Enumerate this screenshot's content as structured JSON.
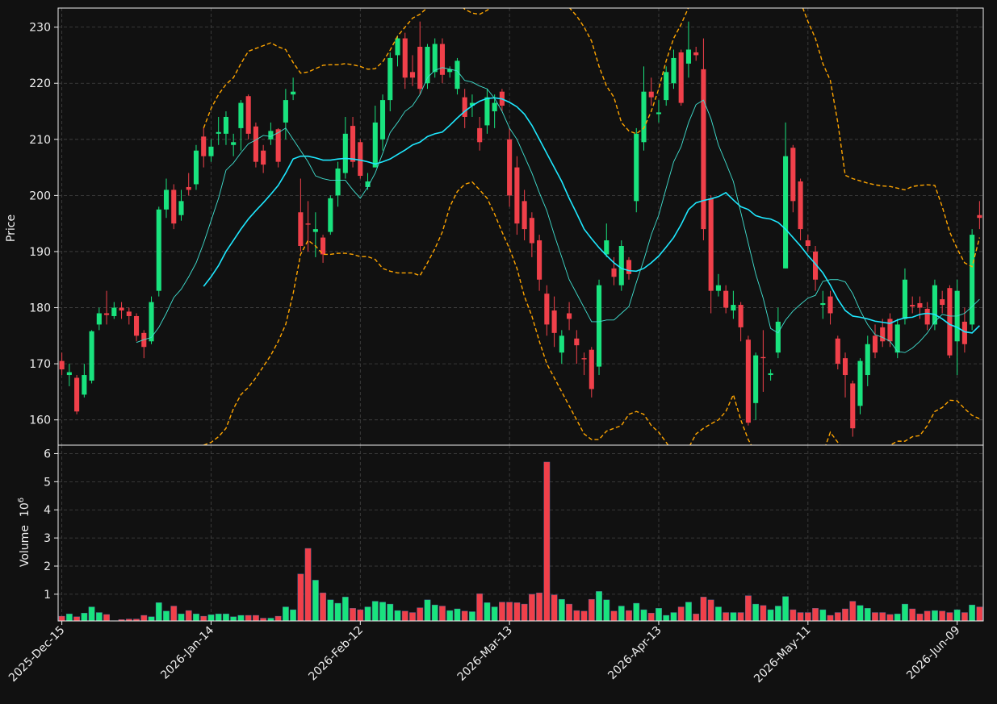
{
  "chart_data": {
    "type": "candlestick",
    "ylabel": "Price",
    "grid": true,
    "up_color": "#19e37e",
    "down_color": "#f0404a",
    "xlim": [
      -0.5,
      123.5
    ],
    "xticks": [
      {
        "value": 0,
        "label": "2025-Dec-15"
      },
      {
        "value": 20,
        "label": "2026-Jan-14"
      },
      {
        "value": 40,
        "label": "2026-Feb-12"
      },
      {
        "value": 60,
        "label": "2026-Mar-13"
      },
      {
        "value": 80,
        "label": "2026-Apr-13"
      },
      {
        "value": 100,
        "label": "2026-May-11"
      },
      {
        "value": 120,
        "label": "2026-Jun-09"
      }
    ],
    "ylim": [
      155.5,
      233.4
    ],
    "yticks": [
      160,
      170,
      180,
      190,
      200,
      210,
      220,
      230
    ],
    "open": [
      170.5,
      168,
      167.5,
      164.5,
      167,
      177,
      179,
      178.5,
      180,
      179.3,
      178.5,
      175.5,
      174,
      183,
      197.5,
      201,
      196.5,
      201.5,
      202,
      210.5,
      207,
      211,
      211,
      209,
      212,
      217.7,
      212.3,
      208,
      210,
      211.8,
      213,
      218,
      197,
      195,
      193.5,
      192.5,
      193.5,
      200,
      204,
      212.4,
      209.5,
      201.5,
      205,
      210,
      217,
      225,
      228,
      222,
      226.5,
      220,
      222,
      227,
      222,
      219,
      217.5,
      216,
      212,
      212.5,
      215,
      218.5,
      210,
      205,
      199,
      196,
      192,
      182.5,
      179.5,
      172,
      179,
      174.5,
      171,
      172.5,
      169.5,
      189.5,
      187,
      184,
      188.5,
      199,
      209.5,
      218.5,
      214.5,
      217,
      220,
      225.5,
      223.5,
      225.5,
      222.5,
      199.5,
      183,
      183,
      179.5,
      180.5,
      174.3,
      163,
      171.2,
      168,
      172,
      187,
      208.5,
      202.5,
      192,
      190,
      180.5,
      182,
      174.5,
      171,
      166.5,
      162.5,
      168,
      175,
      176.5,
      178,
      172,
      178,
      180.5,
      180.8,
      179.8,
      177,
      181.5,
      183.5,
      174,
      177.5,
      177,
      196.5
    ],
    "high": [
      172,
      170,
      168,
      170,
      176,
      180,
      183,
      181,
      181,
      180,
      179,
      176,
      182,
      198,
      203,
      202,
      201,
      204,
      209,
      212,
      210,
      214,
      215,
      211,
      217,
      218,
      213,
      209,
      213,
      212,
      219,
      221,
      203,
      199,
      197,
      193,
      200,
      206,
      214,
      214,
      210,
      204,
      216,
      218,
      225.5,
      228.5,
      229,
      225,
      231,
      227,
      228,
      228,
      223,
      224.5,
      219,
      218,
      214,
      219,
      218,
      219,
      212,
      207,
      201,
      197,
      193,
      184,
      182,
      176,
      181,
      176,
      172,
      173,
      185,
      195,
      189,
      192,
      189,
      212,
      223,
      221,
      217,
      223,
      226,
      226,
      231,
      226.5,
      228,
      200,
      186,
      184,
      183,
      181,
      175,
      172,
      176,
      169,
      180,
      213,
      209,
      203,
      193,
      191,
      183,
      183,
      175,
      172,
      167,
      171,
      175,
      177,
      178,
      179,
      178,
      187,
      182,
      182,
      181,
      185,
      183,
      184,
      185,
      180,
      194,
      199
    ],
    "low": [
      168,
      166,
      161,
      164,
      166.5,
      176,
      177,
      178,
      178,
      177,
      174,
      171,
      173.5,
      182,
      196,
      194,
      195.5,
      200,
      201,
      205,
      206,
      209,
      209,
      207,
      208,
      210,
      205,
      204,
      209,
      205,
      210,
      217,
      190,
      190,
      189,
      188,
      193,
      198,
      203,
      205,
      203,
      201,
      205,
      208,
      215,
      223,
      219,
      219.5,
      218,
      219,
      221,
      220,
      221,
      218,
      212,
      214,
      208,
      211,
      212,
      215,
      198,
      193,
      192,
      189,
      183,
      175,
      173,
      170,
      176,
      170,
      168,
      164,
      168,
      189,
      184,
      183,
      185,
      197,
      208,
      216,
      213,
      216,
      219,
      216,
      221,
      224,
      192,
      179,
      182,
      179,
      178,
      174,
      159,
      160,
      165,
      167,
      171,
      187,
      197,
      192,
      190,
      183,
      178,
      177,
      169,
      164,
      157,
      161,
      166,
      171,
      173,
      173,
      171,
      177,
      179,
      178,
      176,
      176,
      179,
      171,
      168,
      172,
      176,
      194
    ],
    "close": [
      169,
      168.5,
      161.5,
      168,
      175.8,
      179,
      178.7,
      180,
      179.5,
      178.5,
      175,
      173,
      181,
      197.5,
      201,
      195,
      199,
      201,
      208,
      207,
      208.7,
      211.3,
      214,
      209.5,
      216.5,
      211,
      206,
      205.5,
      211.5,
      206,
      217,
      218.5,
      191,
      194.8,
      194,
      189.5,
      199.5,
      204.8,
      211,
      206,
      203.5,
      202.5,
      213,
      217,
      224.5,
      228,
      221,
      221,
      219,
      226.5,
      227,
      221.5,
      222.5,
      224,
      214,
      216.5,
      209.5,
      217.5,
      216.5,
      216,
      200,
      195,
      194,
      191.5,
      185,
      177,
      175.5,
      175,
      178,
      173.3,
      170.8,
      165.5,
      184,
      192,
      185.5,
      191,
      186,
      211,
      218.5,
      217.5,
      214.8,
      222,
      224.5,
      216.5,
      226,
      225,
      194,
      183,
      184,
      180,
      180.5,
      176.5,
      159.5,
      171.5,
      171,
      168.3,
      177.5,
      207,
      199,
      194,
      191,
      185,
      180.8,
      179,
      170,
      168,
      158.5,
      170.5,
      173.5,
      172,
      174,
      174,
      177,
      185,
      180.2,
      180,
      177,
      184,
      180.5,
      171.5,
      183,
      173.5,
      193,
      196
    ],
    "overlays": [
      {
        "color": "#1ee8ff",
        "linestyle": "solid",
        "values": [
          null,
          null,
          null,
          null,
          null,
          null,
          null,
          null,
          null,
          null,
          null,
          null,
          null,
          null,
          null,
          null,
          null,
          null,
          null,
          183.8,
          185.5,
          187.5,
          190,
          192,
          194,
          195.8,
          197.3,
          198.7,
          200.2,
          201.8,
          204,
          206.5,
          207,
          207,
          206.7,
          206.3,
          206.3,
          206.5,
          206.6,
          206.5,
          206.3,
          206,
          205.6,
          206,
          206.5,
          207.3,
          208.1,
          209,
          209.5,
          210.5,
          211,
          211.3,
          212.5,
          213.8,
          215,
          216,
          216.8,
          217.3,
          217.4,
          217.2,
          216.6,
          215.8,
          214.5,
          212.5,
          210,
          207.5,
          205,
          202.5,
          199.5,
          196.8,
          194,
          192.3,
          190.7,
          189.3,
          188,
          187,
          186.6,
          186.5,
          187,
          188,
          189.2,
          190.8,
          192.5,
          194.8,
          197.5,
          198.7,
          199.1,
          199.4,
          199.8,
          200.5,
          199.2,
          198,
          197.5,
          196.4,
          196,
          195.8,
          195.2,
          194,
          192.5,
          191,
          189.3,
          187.8,
          186.2,
          184,
          181.5,
          179.5,
          178.5,
          178.3,
          178,
          177.6,
          177.4,
          177.2,
          177.8,
          178.2,
          178.3,
          178.8,
          179,
          178.8,
          178,
          177,
          176.5,
          175.7,
          175.5,
          176.8
        ]
      },
      {
        "color": "#40e0d0",
        "linestyle": "solid",
        "values": [
          null,
          null,
          null,
          null,
          null,
          null,
          null,
          null,
          null,
          null,
          173.8,
          174.3,
          174.7,
          176.5,
          179,
          181.8,
          183.3,
          185.5,
          188,
          191.5,
          195.5,
          199.5,
          204.5,
          205.8,
          207.6,
          209.2,
          209.9,
          210.7,
          210.5,
          211.2,
          212,
          210,
          208,
          206,
          203.5,
          203,
          202.7,
          202.7,
          202.7,
          201,
          199.5,
          201.5,
          204,
          207.5,
          211.2,
          213,
          215,
          216,
          218,
          221,
          222.3,
          222.8,
          222.5,
          222.2,
          220.5,
          220.2,
          219.5,
          219,
          217.3,
          215,
          212,
          210,
          207,
          204,
          200.5,
          197.3,
          193,
          189,
          185,
          182.5,
          180,
          177.5,
          177.5,
          177.8,
          177.8,
          179,
          180.2,
          184.5,
          188.5,
          193,
          196.5,
          201.3,
          206,
          208.7,
          213,
          216.2,
          217,
          213.7,
          209,
          205.8,
          202.5,
          197,
          191.5,
          186,
          181.7,
          176.3,
          175.5,
          177.8,
          179.4,
          180.6,
          181.7,
          182.2,
          184.7,
          185,
          185,
          184.6,
          182.5,
          179.5,
          177,
          175.2,
          174.7,
          174,
          172.2,
          172,
          172.8,
          174,
          175.5,
          177.5,
          178.8,
          178.5,
          178.5,
          179,
          180.2,
          181.5
        ]
      },
      {
        "color": "#ffa500",
        "linestyle": "dashed",
        "values": [
          null,
          null,
          null,
          null,
          null,
          null,
          null,
          null,
          null,
          null,
          null,
          null,
          null,
          null,
          null,
          null,
          null,
          null,
          null,
          212,
          215.5,
          218,
          219.8,
          221,
          223.5,
          225.7,
          226.2,
          226.7,
          227.2,
          226.5,
          226,
          223.7,
          221.8,
          222,
          222.6,
          223.2,
          223.3,
          223.3,
          223.5,
          223.3,
          223,
          222.5,
          222.6,
          223.8,
          225.9,
          228.4,
          230,
          231.6,
          232.3,
          233.5,
          234.5,
          235,
          236,
          234.5,
          233.2,
          232.5,
          232.3,
          233,
          234,
          235,
          236,
          237,
          238,
          238,
          238,
          237.5,
          236.5,
          235,
          233.5,
          232,
          230,
          227.5,
          223,
          219.5,
          217.5,
          213,
          211.5,
          211,
          212,
          215,
          219,
          224,
          228,
          230.5,
          233.5,
          236,
          238,
          240,
          241,
          242,
          242,
          242,
          242,
          242,
          241,
          240,
          239,
          237,
          236,
          234.5,
          231,
          228,
          223.5,
          220.5,
          213,
          203.6,
          203,
          202.6,
          202.2,
          201.9,
          201.7,
          201.6,
          201.3,
          201,
          201.6,
          201.8,
          201.9,
          201.8,
          198,
          193.5,
          190.5,
          188,
          187.3,
          192.5
        ]
      },
      {
        "color": "#ffa500",
        "linestyle": "dashed",
        "values": [
          null,
          null,
          null,
          null,
          null,
          null,
          null,
          null,
          null,
          null,
          null,
          null,
          null,
          null,
          null,
          null,
          null,
          null,
          null,
          155.5,
          156,
          157,
          158.5,
          162,
          164.5,
          165.8,
          167.5,
          169.5,
          171.5,
          174,
          177,
          182.5,
          189.5,
          192,
          191,
          189.5,
          189.5,
          189.7,
          189.7,
          189.5,
          189.1,
          189.1,
          188.6,
          187,
          186.5,
          186.2,
          186.2,
          186.2,
          185.7,
          188,
          190.5,
          193.5,
          198,
          200.7,
          202,
          202.4,
          201,
          199.5,
          196.7,
          193.5,
          190.5,
          187,
          182,
          178.5,
          174,
          170,
          167.5,
          165,
          162.5,
          160,
          157.5,
          156.5,
          156.5,
          158,
          158.5,
          159,
          161,
          161.5,
          161,
          159,
          157.8,
          156,
          154,
          153,
          155,
          157.5,
          158.5,
          159.3,
          160,
          161.5,
          164.5,
          160,
          156.5,
          154,
          152,
          151,
          150,
          149,
          148,
          148,
          149,
          150.5,
          154,
          157.8,
          156,
          154,
          153,
          152.5,
          153,
          153.5,
          154.5,
          155.5,
          156.2,
          156.2,
          157,
          157.2,
          159,
          161.5,
          162.2,
          163.5,
          163.4,
          162,
          160.8,
          160.2
        ]
      }
    ],
    "volume": {
      "ylabel": "Volume",
      "offset_base": "10",
      "offset_exponent": "6",
      "ylim": [
        0.05,
        6.3
      ],
      "yticks": [
        1,
        2,
        3,
        4,
        5,
        6
      ],
      "values": [
        0.22,
        0.3,
        0.2,
        0.33,
        0.55,
        0.35,
        0.28,
        0.06,
        0.1,
        0.12,
        0.12,
        0.25,
        0.2,
        0.7,
        0.4,
        0.58,
        0.3,
        0.42,
        0.3,
        0.22,
        0.27,
        0.3,
        0.3,
        0.2,
        0.25,
        0.25,
        0.25,
        0.15,
        0.15,
        0.22,
        0.55,
        0.45,
        1.72,
        2.63,
        1.5,
        1.05,
        0.8,
        0.68,
        0.9,
        0.5,
        0.45,
        0.55,
        0.75,
        0.72,
        0.65,
        0.42,
        0.4,
        0.35,
        0.52,
        0.8,
        0.62,
        0.58,
        0.42,
        0.48,
        0.4,
        0.38,
        1.02,
        0.7,
        0.55,
        0.72,
        0.72,
        0.7,
        0.65,
        1.0,
        1.05,
        5.7,
        0.98,
        0.82,
        0.65,
        0.42,
        0.4,
        0.82,
        1.1,
        0.8,
        0.4,
        0.58,
        0.42,
        0.68,
        0.45,
        0.33,
        0.5,
        0.25,
        0.35,
        0.55,
        0.72,
        0.3,
        0.9,
        0.8,
        0.55,
        0.35,
        0.35,
        0.35,
        0.95,
        0.65,
        0.6,
        0.45,
        0.58,
        0.92,
        0.45,
        0.35,
        0.35,
        0.5,
        0.45,
        0.25,
        0.35,
        0.48,
        0.75,
        0.6,
        0.5,
        0.35,
        0.35,
        0.28,
        0.3,
        0.65,
        0.48,
        0.3,
        0.4,
        0.42,
        0.4,
        0.35,
        0.45,
        0.35,
        0.62,
        0.55
      ]
    }
  }
}
